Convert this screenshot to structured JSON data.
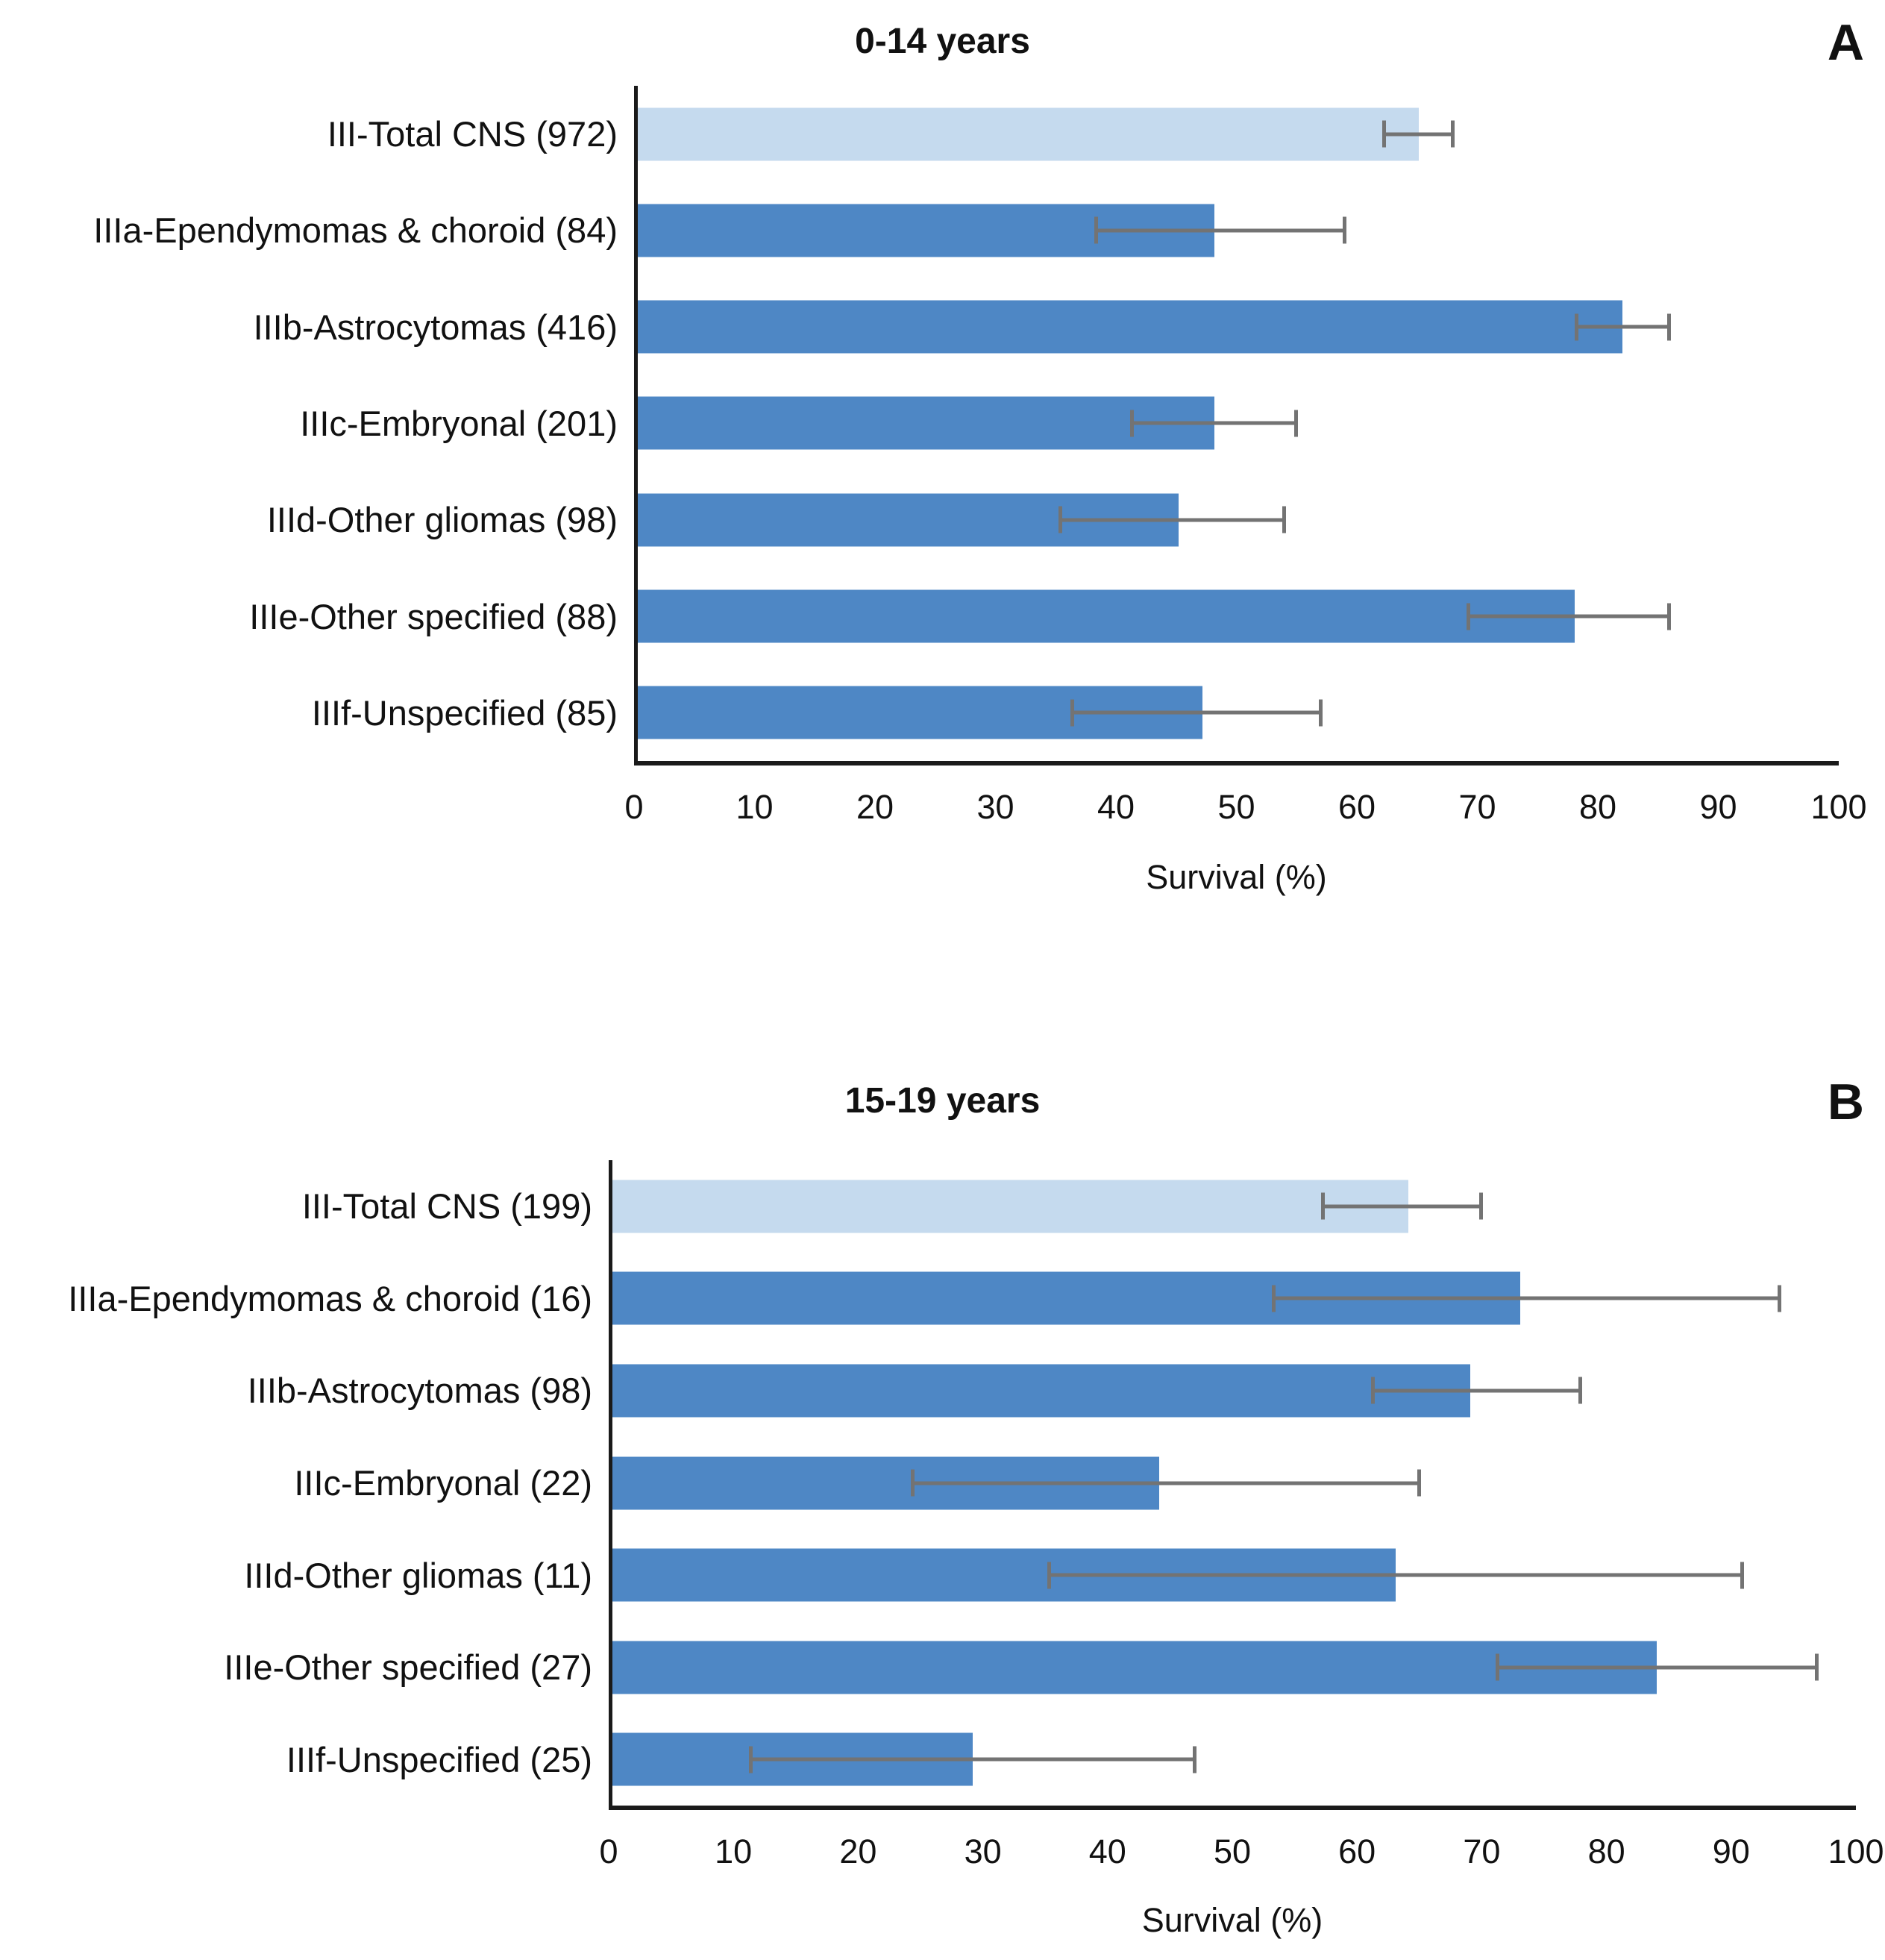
{
  "figure": {
    "bar_color": "#4e87c5",
    "total_bar_color": "#c5daee",
    "error_color": "#737373",
    "axis_color": "#1a1a1a",
    "x_ticks": [
      0,
      10,
      20,
      30,
      40,
      50,
      60,
      70,
      80,
      90,
      100
    ]
  },
  "chart_data": [
    {
      "type": "bar",
      "orientation": "horizontal",
      "panel_letter": "A",
      "title": "0-14 years",
      "xlabel": "Survival (%)",
      "xlim": [
        0,
        100
      ],
      "grid": false,
      "legend": "none",
      "categories": [
        "III-Total CNS (972)",
        "IIIa-Ependymomas & choroid (84)",
        "IIIb-Astrocytomas (416)",
        "IIIc-Embryonal (201)",
        "IIId-Other gliomas (98)",
        "IIIe-Other specified (88)",
        "IIIf-Unspecified (85)"
      ],
      "values": [
        65,
        48,
        82,
        48,
        45,
        78,
        47
      ],
      "ci_low": [
        62,
        38,
        78,
        41,
        35,
        69,
        36
      ],
      "ci_high": [
        68,
        59,
        86,
        55,
        54,
        86,
        57
      ],
      "highlight_index": 0
    },
    {
      "type": "bar",
      "orientation": "horizontal",
      "panel_letter": "B",
      "title": "15-19 years",
      "xlabel": "Survival (%)",
      "xlim": [
        0,
        100
      ],
      "grid": false,
      "legend": "none",
      "categories": [
        "III-Total CNS (199)",
        "IIIa-Ependymomas & choroid (16)",
        "IIIb-Astrocytomas (98)",
        "IIIc-Embryonal (22)",
        "IIId-Other gliomas (11)",
        "IIIe-Other specified (27)",
        "IIIf-Unspecified (25)"
      ],
      "values": [
        64,
        73,
        69,
        44,
        63,
        84,
        29
      ],
      "ci_low": [
        57,
        53,
        61,
        24,
        35,
        71,
        11
      ],
      "ci_high": [
        70,
        94,
        78,
        65,
        91,
        97,
        47
      ],
      "highlight_index": 0
    }
  ]
}
